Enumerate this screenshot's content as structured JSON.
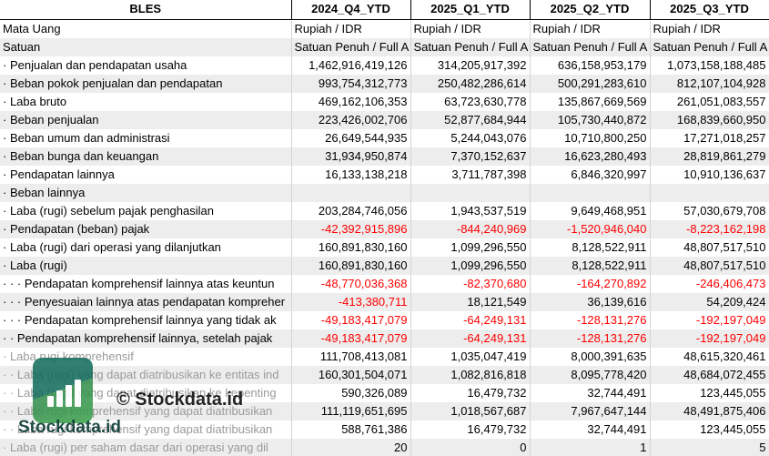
{
  "table": {
    "headers": [
      "BLES",
      "2024_Q4_YTD",
      "2025_Q1_YTD",
      "2025_Q2_YTD",
      "2025_Q3_YTD"
    ],
    "rows": [
      {
        "label": "Mata Uang",
        "values": [
          "Rupiah / IDR",
          "Rupiah / IDR",
          "Rupiah / IDR",
          "Rupiah / IDR"
        ],
        "kind": "text"
      },
      {
        "label": "Satuan",
        "values": [
          "Satuan Penuh / Full A",
          "Satuan Penuh / Full A",
          "Satuan Penuh / Full A",
          "Satuan Penuh / Full A"
        ],
        "kind": "text"
      },
      {
        "label": "· Penjualan dan pendapatan usaha",
        "values": [
          "1,462,916,419,126",
          "314,205,917,392",
          "636,158,953,179",
          "1,073,158,188,485"
        ]
      },
      {
        "label": "· Beban pokok penjualan dan pendapatan",
        "values": [
          "993,754,312,773",
          "250,482,286,614",
          "500,291,283,610",
          "812,107,104,928"
        ]
      },
      {
        "label": "· Laba bruto",
        "values": [
          "469,162,106,353",
          "63,723,630,778",
          "135,867,669,569",
          "261,051,083,557"
        ]
      },
      {
        "label": "· Beban penjualan",
        "values": [
          "223,426,002,706",
          "52,877,684,944",
          "105,730,440,872",
          "168,839,660,950"
        ]
      },
      {
        "label": "· Beban umum dan administrasi",
        "values": [
          "26,649,544,935",
          "5,244,043,076",
          "10,710,800,250",
          "17,271,018,257"
        ]
      },
      {
        "label": "· Beban bunga dan keuangan",
        "values": [
          "31,934,950,874",
          "7,370,152,637",
          "16,623,280,493",
          "28,819,861,279"
        ]
      },
      {
        "label": "· Pendapatan lainnya",
        "values": [
          "16,133,138,218",
          "3,711,787,398",
          "6,846,320,997",
          "10,910,136,637"
        ]
      },
      {
        "label": "· Beban lainnya",
        "values": [
          "",
          "",
          "",
          ""
        ]
      },
      {
        "label": "· Laba (rugi) sebelum pajak penghasilan",
        "values": [
          "203,284,746,056",
          "1,943,537,519",
          "9,649,468,951",
          "57,030,679,708"
        ]
      },
      {
        "label": "· Pendapatan (beban) pajak",
        "values": [
          "-42,392,915,896",
          "-844,240,969",
          "-1,520,946,040",
          "-8,223,162,198"
        ]
      },
      {
        "label": "· Laba (rugi) dari operasi yang dilanjutkan",
        "values": [
          "160,891,830,160",
          "1,099,296,550",
          "8,128,522,911",
          "48,807,517,510"
        ]
      },
      {
        "label": "· Laba (rugi)",
        "values": [
          "160,891,830,160",
          "1,099,296,550",
          "8,128,522,911",
          "48,807,517,510"
        ]
      },
      {
        "label": "· · · Pendapatan komprehensif lainnya atas keuntun",
        "values": [
          "-48,770,036,368",
          "-82,370,680",
          "-164,270,892",
          "-246,406,473"
        ]
      },
      {
        "label": "· · · Penyesuaian lainnya atas pendapatan kompreher",
        "values": [
          "-413,380,711",
          "18,121,549",
          "36,139,616",
          "54,209,424"
        ]
      },
      {
        "label": "· · · Pendapatan komprehensif lainnya yang tidak ak",
        "values": [
          "-49,183,417,079",
          "-64,249,131",
          "-128,131,276",
          "-192,197,049"
        ]
      },
      {
        "label": "· · Pendapatan komprehensif lainnya, setelah pajak",
        "values": [
          "-49,183,417,079",
          "-64,249,131",
          "-128,131,276",
          "-192,197,049"
        ]
      },
      {
        "label": "· Laba rugi komprehensif",
        "values": [
          "111,708,413,081",
          "1,035,047,419",
          "8,000,391,635",
          "48,615,320,461"
        ],
        "faded": true
      },
      {
        "label": "· · Laba (rugi) yang dapat diatribusikan ke entitas ind",
        "values": [
          "160,301,504,071",
          "1,082,816,818",
          "8,095,778,420",
          "48,684,072,455"
        ],
        "faded": true
      },
      {
        "label": "· · Laba (rugi) yang dapat diatribusikan ke kepenting",
        "values": [
          "590,326,089",
          "16,479,732",
          "32,744,491",
          "123,445,055"
        ],
        "faded": true
      },
      {
        "label": "· · Laba rugi komprehensif yang dapat diatribusikan",
        "values": [
          "111,119,651,695",
          "1,018,567,687",
          "7,967,647,144",
          "48,491,875,406"
        ],
        "faded": true
      },
      {
        "label": "· · Laba rugi komprehensif yang dapat diatribusikan",
        "values": [
          "588,761,386",
          "16,479,732",
          "32,744,491",
          "123,445,055"
        ],
        "faded": true
      },
      {
        "label": "· Laba (rugi) per saham dasar dari operasi yang dil",
        "values": [
          "20",
          "0",
          "1",
          "5"
        ],
        "faded": true
      }
    ]
  },
  "watermark": {
    "center_text": "© Stockdata.id",
    "logo_text": "Stockdata.id",
    "logo_icon": "bar-chart-icon"
  },
  "colors": {
    "negative": "#ff0000",
    "shade": "#ededed",
    "brand": "#0f6a5a"
  }
}
